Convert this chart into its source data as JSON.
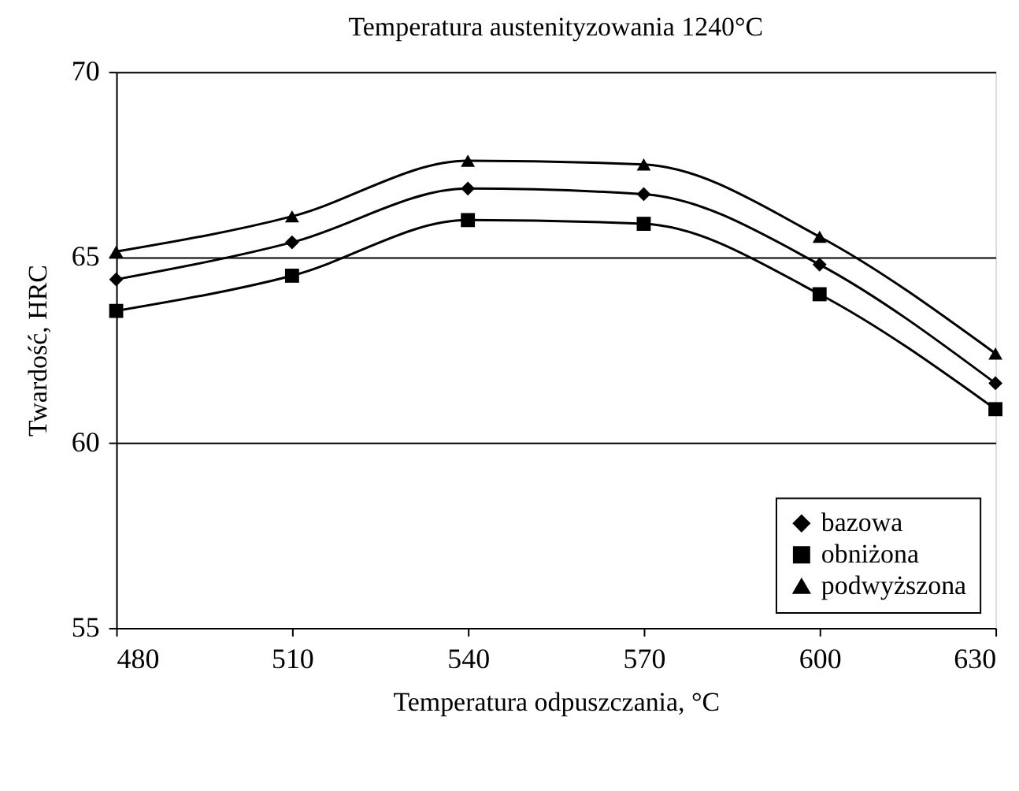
{
  "chart_data": {
    "type": "line",
    "title": "Temperatura austenityzowania 1240°C",
    "xlabel": "Temperatura odpuszczania, °C",
    "ylabel": "Twardość, HRC",
    "x": [
      480,
      510,
      540,
      570,
      600,
      630
    ],
    "series": [
      {
        "name": "bazowa",
        "color": "#000000",
        "marker": "diamond",
        "values": [
          64.4,
          65.4,
          66.85,
          66.7,
          64.8,
          61.6
        ]
      },
      {
        "name": "obniżona",
        "color": "#000000",
        "marker": "square",
        "values": [
          63.55,
          64.5,
          66.0,
          65.9,
          64.0,
          60.9
        ]
      },
      {
        "name": "podwyższona",
        "color": "#000000",
        "marker": "triangle",
        "values": [
          65.15,
          66.1,
          67.6,
          67.5,
          65.55,
          62.4
        ]
      }
    ],
    "xlim": [
      480,
      630
    ],
    "xticks": [
      480,
      510,
      540,
      570,
      600,
      630
    ],
    "ylim": [
      55,
      70
    ],
    "yticks": [
      55,
      60,
      65,
      70
    ],
    "grid": "y",
    "legend": "bottom right",
    "line_style": "solid"
  }
}
